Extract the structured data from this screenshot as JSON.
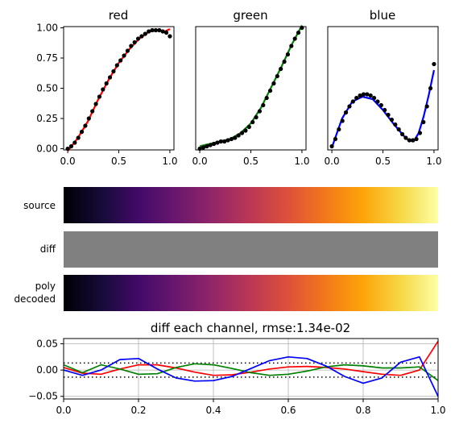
{
  "chart_data": [
    {
      "type": "scatter",
      "title": "red",
      "color": "#ff0000",
      "xlim": [
        -0.04,
        1.04
      ],
      "ylim": [
        -0.01,
        1.01
      ],
      "xticks": [
        "0.0",
        "0.5",
        "1.0"
      ],
      "yticks": [
        "0.00",
        "0.25",
        "0.50",
        "0.75",
        "1.00"
      ],
      "points": {
        "x": [
          0.0,
          0.0345,
          0.069,
          0.1034,
          0.1379,
          0.1724,
          0.2069,
          0.2414,
          0.2759,
          0.3103,
          0.3448,
          0.3793,
          0.4138,
          0.4483,
          0.4828,
          0.5172,
          0.5517,
          0.5862,
          0.6207,
          0.6552,
          0.6897,
          0.7241,
          0.7586,
          0.7931,
          0.8276,
          0.8621,
          0.8966,
          0.931,
          0.9655,
          1.0
        ],
        "y": [
          0.0,
          0.02,
          0.05,
          0.09,
          0.14,
          0.19,
          0.25,
          0.31,
          0.37,
          0.43,
          0.49,
          0.54,
          0.59,
          0.64,
          0.69,
          0.73,
          0.77,
          0.81,
          0.85,
          0.88,
          0.91,
          0.93,
          0.95,
          0.97,
          0.98,
          0.98,
          0.98,
          0.97,
          0.96,
          0.93
        ]
      },
      "fit": {
        "x": [
          0.0,
          0.1,
          0.2,
          0.3,
          0.4,
          0.5,
          0.6,
          0.7,
          0.8,
          0.9,
          0.95,
          1.0
        ],
        "y": [
          -0.02,
          0.09,
          0.23,
          0.41,
          0.57,
          0.71,
          0.82,
          0.91,
          0.97,
          0.98,
          0.97,
          0.99
        ]
      }
    },
    {
      "type": "scatter",
      "title": "green",
      "color": "#008000",
      "xlim": [
        -0.04,
        1.04
      ],
      "ylim": [
        -0.01,
        1.01
      ],
      "xticks": [
        "0.0",
        "0.5",
        "1.0"
      ],
      "yticks": [],
      "points": {
        "x": [
          0.0,
          0.0345,
          0.069,
          0.1034,
          0.1379,
          0.1724,
          0.2069,
          0.2414,
          0.2759,
          0.3103,
          0.3448,
          0.3793,
          0.4138,
          0.4483,
          0.4828,
          0.5172,
          0.5517,
          0.5862,
          0.6207,
          0.6552,
          0.6897,
          0.7241,
          0.7586,
          0.7931,
          0.8276,
          0.8621,
          0.8966,
          0.931,
          0.9655,
          1.0
        ],
        "y": [
          0.0,
          0.01,
          0.02,
          0.03,
          0.04,
          0.05,
          0.06,
          0.06,
          0.07,
          0.08,
          0.09,
          0.11,
          0.13,
          0.15,
          0.18,
          0.22,
          0.26,
          0.31,
          0.36,
          0.42,
          0.48,
          0.54,
          0.6,
          0.66,
          0.72,
          0.78,
          0.85,
          0.91,
          0.96,
          1.0
        ]
      },
      "fit": {
        "x": [
          0.0,
          0.05,
          0.1,
          0.2,
          0.3,
          0.4,
          0.5,
          0.6,
          0.7,
          0.8,
          0.9,
          1.0
        ],
        "y": [
          0.02,
          0.03,
          0.04,
          0.06,
          0.08,
          0.13,
          0.21,
          0.34,
          0.51,
          0.68,
          0.86,
          1.02
        ]
      }
    },
    {
      "type": "scatter",
      "title": "blue",
      "color": "#0000ff",
      "xlim": [
        -0.04,
        1.04
      ],
      "ylim": [
        -0.01,
        1.01
      ],
      "xticks": [
        "0.0",
        "0.5",
        "1.0"
      ],
      "yticks": [],
      "points": {
        "x": [
          0.0,
          0.0345,
          0.069,
          0.1034,
          0.1379,
          0.1724,
          0.2069,
          0.2414,
          0.2759,
          0.3103,
          0.3448,
          0.3793,
          0.4138,
          0.4483,
          0.4828,
          0.5172,
          0.5517,
          0.5862,
          0.6207,
          0.6552,
          0.6897,
          0.7241,
          0.7586,
          0.7931,
          0.8276,
          0.8621,
          0.8966,
          0.931,
          0.9655,
          1.0
        ],
        "y": [
          0.02,
          0.08,
          0.16,
          0.23,
          0.3,
          0.35,
          0.39,
          0.42,
          0.44,
          0.45,
          0.45,
          0.44,
          0.42,
          0.39,
          0.36,
          0.32,
          0.28,
          0.24,
          0.2,
          0.16,
          0.12,
          0.09,
          0.07,
          0.07,
          0.08,
          0.13,
          0.22,
          0.35,
          0.5,
          0.7
        ]
      },
      "fit": {
        "x": [
          0.0,
          0.05,
          0.1,
          0.2,
          0.3,
          0.4,
          0.5,
          0.6,
          0.7,
          0.75,
          0.8,
          0.85,
          0.9,
          0.95,
          1.0
        ],
        "y": [
          0.01,
          0.13,
          0.25,
          0.39,
          0.43,
          0.41,
          0.32,
          0.21,
          0.11,
          0.07,
          0.06,
          0.13,
          0.27,
          0.45,
          0.65
        ]
      }
    },
    {
      "type": "heatmap",
      "rows": [
        "source",
        "diff",
        "poly\ndecoded"
      ],
      "colormap": "inferno",
      "diff_color": "#808080"
    },
    {
      "type": "line",
      "title": "diff each channel, rmse:1.34e-02",
      "xlim": [
        0.0,
        1.0
      ],
      "ylim": [
        -0.055,
        0.06
      ],
      "xticks": [
        "0.0",
        "0.2",
        "0.4",
        "0.6",
        "0.8",
        "1.0"
      ],
      "yticks": [
        "0.05",
        "0.00",
        "−0.05"
      ],
      "grid": true,
      "rmse_bounds": [
        0.0134,
        -0.0134
      ],
      "series": [
        {
          "color": "#ff0000",
          "x": [
            0.0,
            0.05,
            0.1,
            0.15,
            0.2,
            0.25,
            0.3,
            0.35,
            0.4,
            0.45,
            0.5,
            0.55,
            0.6,
            0.65,
            0.7,
            0.75,
            0.8,
            0.85,
            0.9,
            0.95,
            1.0
          ],
          "y": [
            0.005,
            -0.006,
            -0.008,
            0.002,
            0.01,
            0.01,
            0.004,
            -0.004,
            -0.01,
            -0.009,
            -0.004,
            0.002,
            0.006,
            0.007,
            0.005,
            0.002,
            -0.003,
            -0.008,
            -0.01,
            0.0,
            0.055
          ]
        },
        {
          "color": "#008000",
          "x": [
            0.0,
            0.05,
            0.1,
            0.15,
            0.2,
            0.25,
            0.3,
            0.35,
            0.4,
            0.45,
            0.5,
            0.55,
            0.6,
            0.65,
            0.7,
            0.75,
            0.8,
            0.85,
            0.9,
            0.95,
            1.0
          ],
          "y": [
            0.01,
            -0.005,
            0.01,
            0.002,
            -0.008,
            -0.007,
            0.005,
            0.012,
            0.01,
            0.003,
            -0.005,
            -0.01,
            -0.008,
            -0.002,
            0.006,
            0.01,
            0.008,
            0.004,
            0.004,
            0.006,
            -0.02
          ]
        },
        {
          "color": "#0000ff",
          "x": [
            0.0,
            0.05,
            0.1,
            0.15,
            0.2,
            0.25,
            0.3,
            0.35,
            0.4,
            0.45,
            0.5,
            0.55,
            0.6,
            0.65,
            0.7,
            0.75,
            0.8,
            0.85,
            0.9,
            0.95,
            1.0
          ],
          "y": [
            0.0,
            -0.01,
            0.0,
            0.02,
            0.022,
            0.002,
            -0.015,
            -0.021,
            -0.02,
            -0.012,
            0.003,
            0.018,
            0.025,
            0.022,
            0.008,
            -0.012,
            -0.025,
            -0.015,
            0.015,
            0.025,
            -0.05
          ]
        }
      ]
    }
  ]
}
